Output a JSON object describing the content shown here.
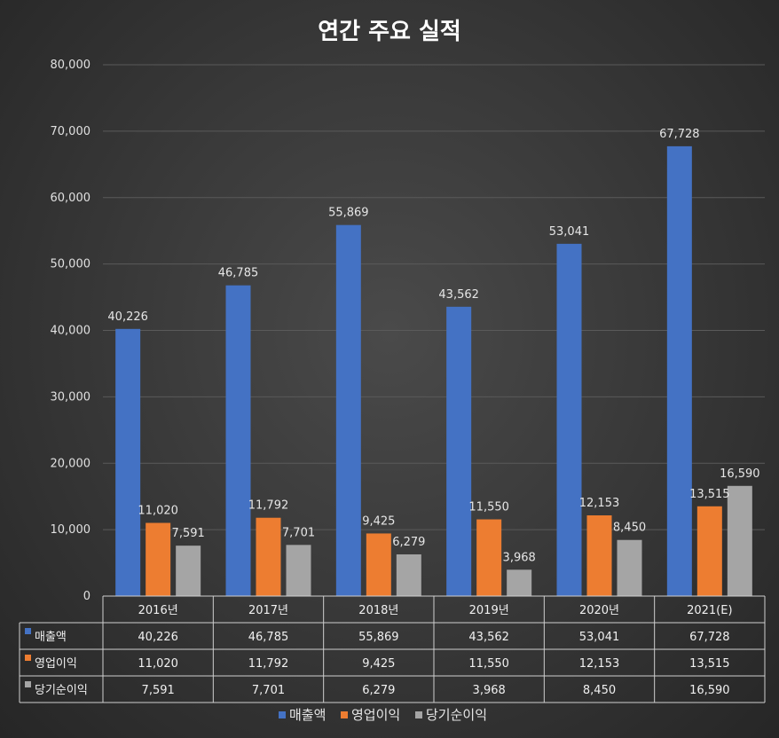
{
  "chart_data": {
    "type": "bar",
    "title": "연간 주요 실적",
    "categories": [
      "2016년",
      "2017년",
      "2018년",
      "2019년",
      "2020년",
      "2021(E)"
    ],
    "series": [
      {
        "name": "매출액",
        "values": [
          40226,
          46785,
          55869,
          43562,
          53041,
          67728
        ],
        "color": "#4472c4"
      },
      {
        "name": "영업이익",
        "values": [
          11020,
          11792,
          9425,
          11550,
          12153,
          13515
        ],
        "color": "#ed7d31"
      },
      {
        "name": "당기순이익",
        "values": [
          7591,
          7701,
          6279,
          3968,
          8450,
          16590
        ],
        "color": "#a5a5a5"
      }
    ],
    "ylim": [
      0,
      80000
    ],
    "yticks": [
      "0",
      "10,000",
      "20,000",
      "30,000",
      "40,000",
      "50,000",
      "60,000",
      "70,000",
      "80,000"
    ],
    "grid": true,
    "legend": "bottom",
    "data_table": true
  }
}
